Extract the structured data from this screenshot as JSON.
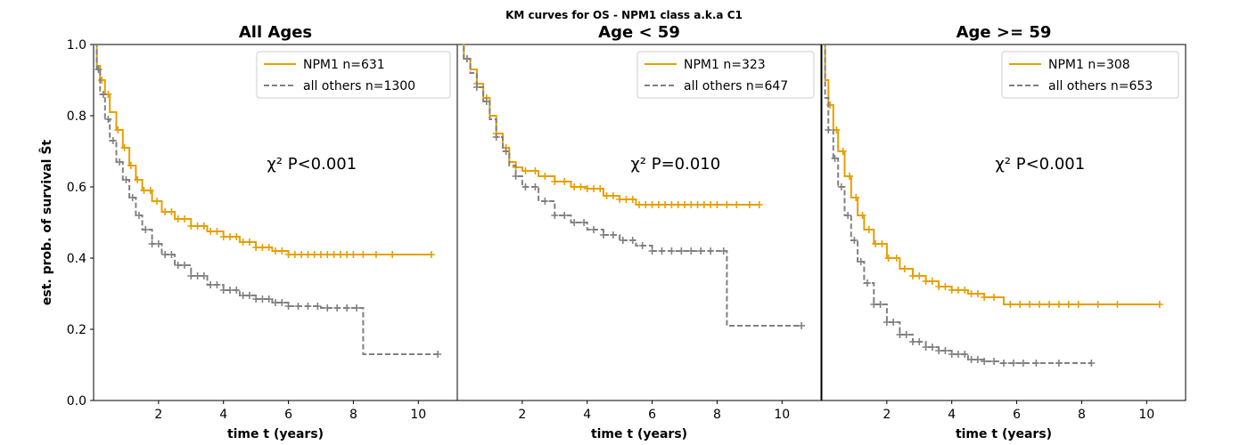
{
  "suptitle": "KM curves for OS - NPM1 class a.k.a C1",
  "chart_data": [
    {
      "type": "line",
      "title": "All Ages",
      "xlabel": "time t (years)",
      "ylabel": "est. prob. of survival Ŝt",
      "xlim": [
        0,
        11.2
      ],
      "ylim": [
        0,
        1.0
      ],
      "xticks": [
        2,
        4,
        6,
        8,
        10
      ],
      "yticks": [
        0.0,
        0.2,
        0.4,
        0.6,
        0.8,
        1.0
      ],
      "annotation": "χ² P<0.001",
      "legend_position": "top-right",
      "series": [
        {
          "name": "NPM1 n=631",
          "color": "#E69F00",
          "style": "solid",
          "points": [
            [
              0,
              1.0
            ],
            [
              0.1,
              0.94
            ],
            [
              0.2,
              0.9
            ],
            [
              0.35,
              0.86
            ],
            [
              0.5,
              0.81
            ],
            [
              0.7,
              0.76
            ],
            [
              0.9,
              0.71
            ],
            [
              1.1,
              0.66
            ],
            [
              1.3,
              0.62
            ],
            [
              1.5,
              0.59
            ],
            [
              1.8,
              0.56
            ],
            [
              2.1,
              0.53
            ],
            [
              2.5,
              0.51
            ],
            [
              3.0,
              0.49
            ],
            [
              3.5,
              0.475
            ],
            [
              4.0,
              0.46
            ],
            [
              4.5,
              0.445
            ],
            [
              5.0,
              0.43
            ],
            [
              5.5,
              0.42
            ],
            [
              6.0,
              0.41
            ],
            [
              10.4,
              0.41
            ]
          ],
          "censors": [
            0.25,
            0.45,
            0.75,
            0.95,
            1.15,
            1.35,
            1.55,
            1.75,
            1.95,
            2.2,
            2.4,
            2.6,
            2.8,
            3.0,
            3.2,
            3.4,
            3.6,
            3.8,
            4.0,
            4.2,
            4.4,
            4.6,
            4.8,
            5.0,
            5.2,
            5.4,
            5.6,
            5.8,
            6.0,
            6.2,
            6.4,
            6.6,
            6.8,
            7.0,
            7.2,
            7.4,
            7.6,
            7.8,
            8.0,
            8.3,
            8.7,
            9.2,
            10.4
          ]
        },
        {
          "name": "all others n=1300",
          "color": "#808080",
          "style": "dashed",
          "points": [
            [
              0,
              1.0
            ],
            [
              0.1,
              0.93
            ],
            [
              0.2,
              0.86
            ],
            [
              0.35,
              0.79
            ],
            [
              0.5,
              0.73
            ],
            [
              0.7,
              0.67
            ],
            [
              0.9,
              0.62
            ],
            [
              1.1,
              0.57
            ],
            [
              1.3,
              0.52
            ],
            [
              1.5,
              0.48
            ],
            [
              1.8,
              0.44
            ],
            [
              2.1,
              0.41
            ],
            [
              2.5,
              0.38
            ],
            [
              3.0,
              0.35
            ],
            [
              3.5,
              0.325
            ],
            [
              4.0,
              0.31
            ],
            [
              4.5,
              0.295
            ],
            [
              5.0,
              0.285
            ],
            [
              5.5,
              0.275
            ],
            [
              6.0,
              0.265
            ],
            [
              7.0,
              0.26
            ],
            [
              8.3,
              0.26
            ],
            [
              8.3,
              0.13
            ],
            [
              10.6,
              0.13
            ]
          ],
          "censors": [
            0.15,
            0.3,
            0.45,
            0.6,
            0.8,
            1.0,
            1.2,
            1.4,
            1.6,
            1.8,
            2.0,
            2.2,
            2.4,
            2.6,
            2.8,
            3.0,
            3.2,
            3.4,
            3.6,
            3.8,
            4.0,
            4.2,
            4.4,
            4.6,
            4.8,
            5.0,
            5.2,
            5.4,
            5.6,
            5.8,
            6.0,
            6.3,
            6.6,
            6.9,
            7.2,
            7.5,
            7.8,
            8.1,
            10.6
          ]
        }
      ]
    },
    {
      "type": "line",
      "title": "Age < 59",
      "xlabel": "time t (years)",
      "ylabel": "",
      "xlim": [
        0,
        11.2
      ],
      "ylim": [
        0,
        1.0
      ],
      "xticks": [
        2,
        4,
        6,
        8,
        10
      ],
      "yticks": [],
      "annotation": "χ² P=0.010",
      "legend_position": "top-right",
      "series": [
        {
          "name": "NPM1 n=323",
          "color": "#E69F00",
          "style": "solid",
          "points": [
            [
              0,
              1.0
            ],
            [
              0.2,
              0.96
            ],
            [
              0.4,
              0.93
            ],
            [
              0.6,
              0.89
            ],
            [
              0.8,
              0.85
            ],
            [
              1.0,
              0.8
            ],
            [
              1.2,
              0.75
            ],
            [
              1.4,
              0.71
            ],
            [
              1.6,
              0.67
            ],
            [
              1.8,
              0.655
            ],
            [
              2.0,
              0.645
            ],
            [
              2.5,
              0.63
            ],
            [
              3.0,
              0.615
            ],
            [
              3.5,
              0.6
            ],
            [
              4.0,
              0.595
            ],
            [
              4.5,
              0.575
            ],
            [
              5.0,
              0.565
            ],
            [
              5.5,
              0.55
            ],
            [
              9.3,
              0.55
            ]
          ],
          "censors": [
            0.3,
            0.6,
            0.9,
            1.2,
            1.5,
            1.8,
            2.1,
            2.4,
            2.7,
            3.0,
            3.3,
            3.6,
            3.8,
            4.0,
            4.2,
            4.4,
            4.6,
            4.8,
            5.0,
            5.2,
            5.4,
            5.6,
            5.8,
            6.0,
            6.2,
            6.4,
            6.6,
            6.8,
            7.0,
            7.2,
            7.4,
            7.6,
            7.8,
            8.0,
            8.3,
            8.6,
            9.0,
            9.3
          ]
        },
        {
          "name": "all others n=647",
          "color": "#808080",
          "style": "dashed",
          "points": [
            [
              0,
              1.0
            ],
            [
              0.2,
              0.96
            ],
            [
              0.4,
              0.92
            ],
            [
              0.6,
              0.88
            ],
            [
              0.8,
              0.84
            ],
            [
              1.0,
              0.79
            ],
            [
              1.2,
              0.74
            ],
            [
              1.4,
              0.7
            ],
            [
              1.6,
              0.66
            ],
            [
              1.8,
              0.63
            ],
            [
              2.0,
              0.6
            ],
            [
              2.5,
              0.56
            ],
            [
              3.0,
              0.52
            ],
            [
              3.5,
              0.5
            ],
            [
              4.0,
              0.48
            ],
            [
              4.5,
              0.465
            ],
            [
              5.0,
              0.45
            ],
            [
              5.5,
              0.435
            ],
            [
              6.0,
              0.42
            ],
            [
              8.3,
              0.42
            ],
            [
              8.3,
              0.21
            ],
            [
              10.6,
              0.21
            ]
          ],
          "censors": [
            0.3,
            0.6,
            0.9,
            1.2,
            1.5,
            1.8,
            2.1,
            2.4,
            2.7,
            3.0,
            3.3,
            3.6,
            3.9,
            4.2,
            4.5,
            4.8,
            5.1,
            5.4,
            5.7,
            6.0,
            6.3,
            6.6,
            6.9,
            7.2,
            7.5,
            7.8,
            8.2,
            10.6
          ]
        }
      ]
    },
    {
      "type": "line",
      "title": "Age >= 59",
      "xlabel": "time t (years)",
      "ylabel": "",
      "xlim": [
        0,
        11.2
      ],
      "ylim": [
        0,
        1.0
      ],
      "xticks": [
        2,
        4,
        6,
        8,
        10
      ],
      "yticks": [],
      "annotation": "χ² P<0.001",
      "legend_position": "top-right",
      "series": [
        {
          "name": "NPM1 n=308",
          "color": "#E69F00",
          "style": "solid",
          "points": [
            [
              0,
              1.0
            ],
            [
              0.1,
              0.9
            ],
            [
              0.2,
              0.83
            ],
            [
              0.35,
              0.76
            ],
            [
              0.5,
              0.7
            ],
            [
              0.7,
              0.63
            ],
            [
              0.9,
              0.57
            ],
            [
              1.1,
              0.52
            ],
            [
              1.3,
              0.48
            ],
            [
              1.6,
              0.44
            ],
            [
              2.0,
              0.4
            ],
            [
              2.4,
              0.37
            ],
            [
              2.8,
              0.35
            ],
            [
              3.2,
              0.335
            ],
            [
              3.6,
              0.32
            ],
            [
              4.0,
              0.31
            ],
            [
              4.5,
              0.3
            ],
            [
              5.0,
              0.29
            ],
            [
              5.6,
              0.27
            ],
            [
              10.4,
              0.27
            ]
          ],
          "censors": [
            0.25,
            0.45,
            0.65,
            0.85,
            1.05,
            1.25,
            1.45,
            1.65,
            1.85,
            2.05,
            2.3,
            2.55,
            2.8,
            3.0,
            3.2,
            3.4,
            3.6,
            3.8,
            4.0,
            4.2,
            4.4,
            4.6,
            4.8,
            5.0,
            5.3,
            5.8,
            6.1,
            6.4,
            6.7,
            7.0,
            7.3,
            7.6,
            7.9,
            8.5,
            9.1,
            10.4
          ]
        },
        {
          "name": "all others n=653",
          "color": "#808080",
          "style": "dashed",
          "points": [
            [
              0,
              1.0
            ],
            [
              0.1,
              0.85
            ],
            [
              0.2,
              0.76
            ],
            [
              0.35,
              0.68
            ],
            [
              0.5,
              0.6
            ],
            [
              0.7,
              0.52
            ],
            [
              0.9,
              0.45
            ],
            [
              1.1,
              0.39
            ],
            [
              1.3,
              0.33
            ],
            [
              1.6,
              0.27
            ],
            [
              2.0,
              0.22
            ],
            [
              2.4,
              0.185
            ],
            [
              2.8,
              0.165
            ],
            [
              3.2,
              0.15
            ],
            [
              3.6,
              0.14
            ],
            [
              4.0,
              0.13
            ],
            [
              4.5,
              0.115
            ],
            [
              5.0,
              0.11
            ],
            [
              5.5,
              0.105
            ],
            [
              8.3,
              0.105
            ]
          ],
          "censors": [
            0.2,
            0.4,
            0.6,
            0.8,
            1.0,
            1.2,
            1.4,
            1.6,
            1.8,
            2.0,
            2.2,
            2.4,
            2.6,
            2.8,
            3.0,
            3.2,
            3.4,
            3.6,
            3.8,
            4.0,
            4.2,
            4.4,
            4.6,
            4.8,
            5.0,
            5.3,
            5.6,
            5.9,
            6.2,
            6.6,
            7.3,
            8.3
          ]
        }
      ]
    }
  ]
}
